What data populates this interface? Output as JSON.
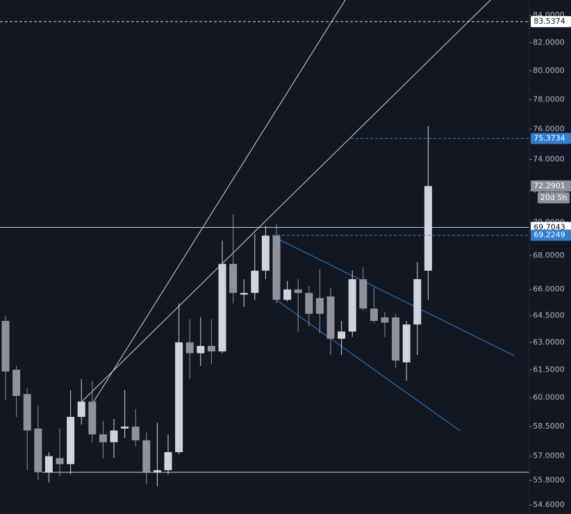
{
  "chart_data": {
    "type": "candlestick",
    "log_scale": true,
    "up_color": "#d1d4dc",
    "down_color": "#8f929b",
    "open": [
      64.2,
      61.5,
      60.2,
      58.4,
      56.2,
      56.9,
      56.6,
      59.0,
      59.8,
      58.1,
      57.7,
      58.4,
      58.5,
      57.8,
      56.2,
      56.3,
      57.2,
      63.0,
      62.4,
      62.8,
      62.5,
      67.5,
      65.7,
      65.8,
      67.1,
      69.2,
      65.4,
      66.0,
      65.8,
      65.5,
      65.6,
      63.2,
      63.6,
      66.6,
      64.9,
      64.4,
      64.4,
      61.9,
      64.0,
      67.1
    ],
    "high": [
      64.5,
      61.7,
      60.5,
      59.6,
      57.2,
      58.4,
      60.4,
      61.0,
      60.9,
      58.8,
      58.9,
      60.4,
      59.4,
      58.2,
      58.7,
      58.1,
      65.2,
      64.3,
      64.4,
      64.3,
      68.9,
      70.5,
      66.6,
      69.3,
      69.8,
      69.9,
      66.5,
      66.6,
      66.2,
      67.2,
      66.1,
      64.2,
      67.1,
      67.3,
      66.1,
      64.7,
      64.6,
      64.2,
      67.6,
      76.2
    ],
    "low": [
      59.9,
      59.0,
      56.3,
      55.8,
      55.7,
      56.0,
      56.1,
      58.6,
      57.7,
      56.9,
      56.9,
      57.9,
      57.5,
      55.6,
      55.5,
      56.1,
      57.1,
      61.0,
      61.7,
      61.8,
      62.4,
      65.2,
      65.0,
      65.4,
      66.6,
      65.2,
      65.3,
      63.6,
      63.9,
      63.5,
      62.3,
      62.3,
      63.3,
      64.8,
      64.1,
      63.3,
      61.6,
      60.9,
      62.3,
      65.4
    ],
    "close": [
      61.4,
      60.1,
      58.3,
      56.2,
      57.0,
      56.6,
      59.0,
      59.8,
      58.1,
      57.7,
      58.3,
      58.5,
      57.8,
      56.2,
      56.3,
      57.2,
      63.0,
      62.4,
      62.8,
      62.5,
      67.5,
      65.8,
      65.8,
      67.1,
      69.2,
      65.4,
      66.0,
      65.8,
      64.6,
      64.6,
      63.2,
      63.6,
      66.6,
      64.9,
      64.2,
      64.1,
      62.0,
      64.0,
      66.6,
      72.2901
    ],
    "ylim": [
      54.17,
      85.14
    ],
    "yticks": [
      {
        "value": 84,
        "label": "84.0000"
      },
      {
        "value": 82,
        "label": "82.0000"
      },
      {
        "value": 80,
        "label": "80.0000"
      },
      {
        "value": 78,
        "label": "78.0000"
      },
      {
        "value": 76,
        "label": "76.0000"
      },
      {
        "value": 74,
        "label": "74.0000"
      },
      {
        "value": 72,
        "label": "72.0000"
      },
      {
        "value": 70,
        "label": "70.0000"
      },
      {
        "value": 68,
        "label": "68.0000"
      },
      {
        "value": 66,
        "label": "66.0000"
      },
      {
        "value": 64.5,
        "label": "64.5000"
      },
      {
        "value": 63,
        "label": "63.0000"
      },
      {
        "value": 61.5,
        "label": "61.5000"
      },
      {
        "value": 60,
        "label": "60.0000"
      },
      {
        "value": 58.5,
        "label": "58.5000"
      },
      {
        "value": 57,
        "label": "57.0000"
      },
      {
        "value": 55.8,
        "label": "55.8000"
      },
      {
        "value": 54.6,
        "label": "54.6000"
      }
    ],
    "price_lines": [
      {
        "value": 83.5374,
        "style": "dashed",
        "color": "#d1d4dc",
        "badge": "#ffffff",
        "text_color": "#131722"
      },
      {
        "value": 75.3734,
        "style": "dashed",
        "color": "#2f7fd1",
        "badge": "#2f7fd1",
        "text_color": "#ffffff"
      },
      {
        "value": 69.7043,
        "style": "solid",
        "color": "#d1d4dc",
        "badge": "#ffffff",
        "text_color": "#131722"
      },
      {
        "value": 69.2249,
        "style": "dashed",
        "color": "#2f7fd1",
        "badge": "#2f7fd1",
        "text_color": "#ffffff"
      }
    ],
    "last_badge_color": "#8f929b",
    "countdown": "20d 5h"
  }
}
